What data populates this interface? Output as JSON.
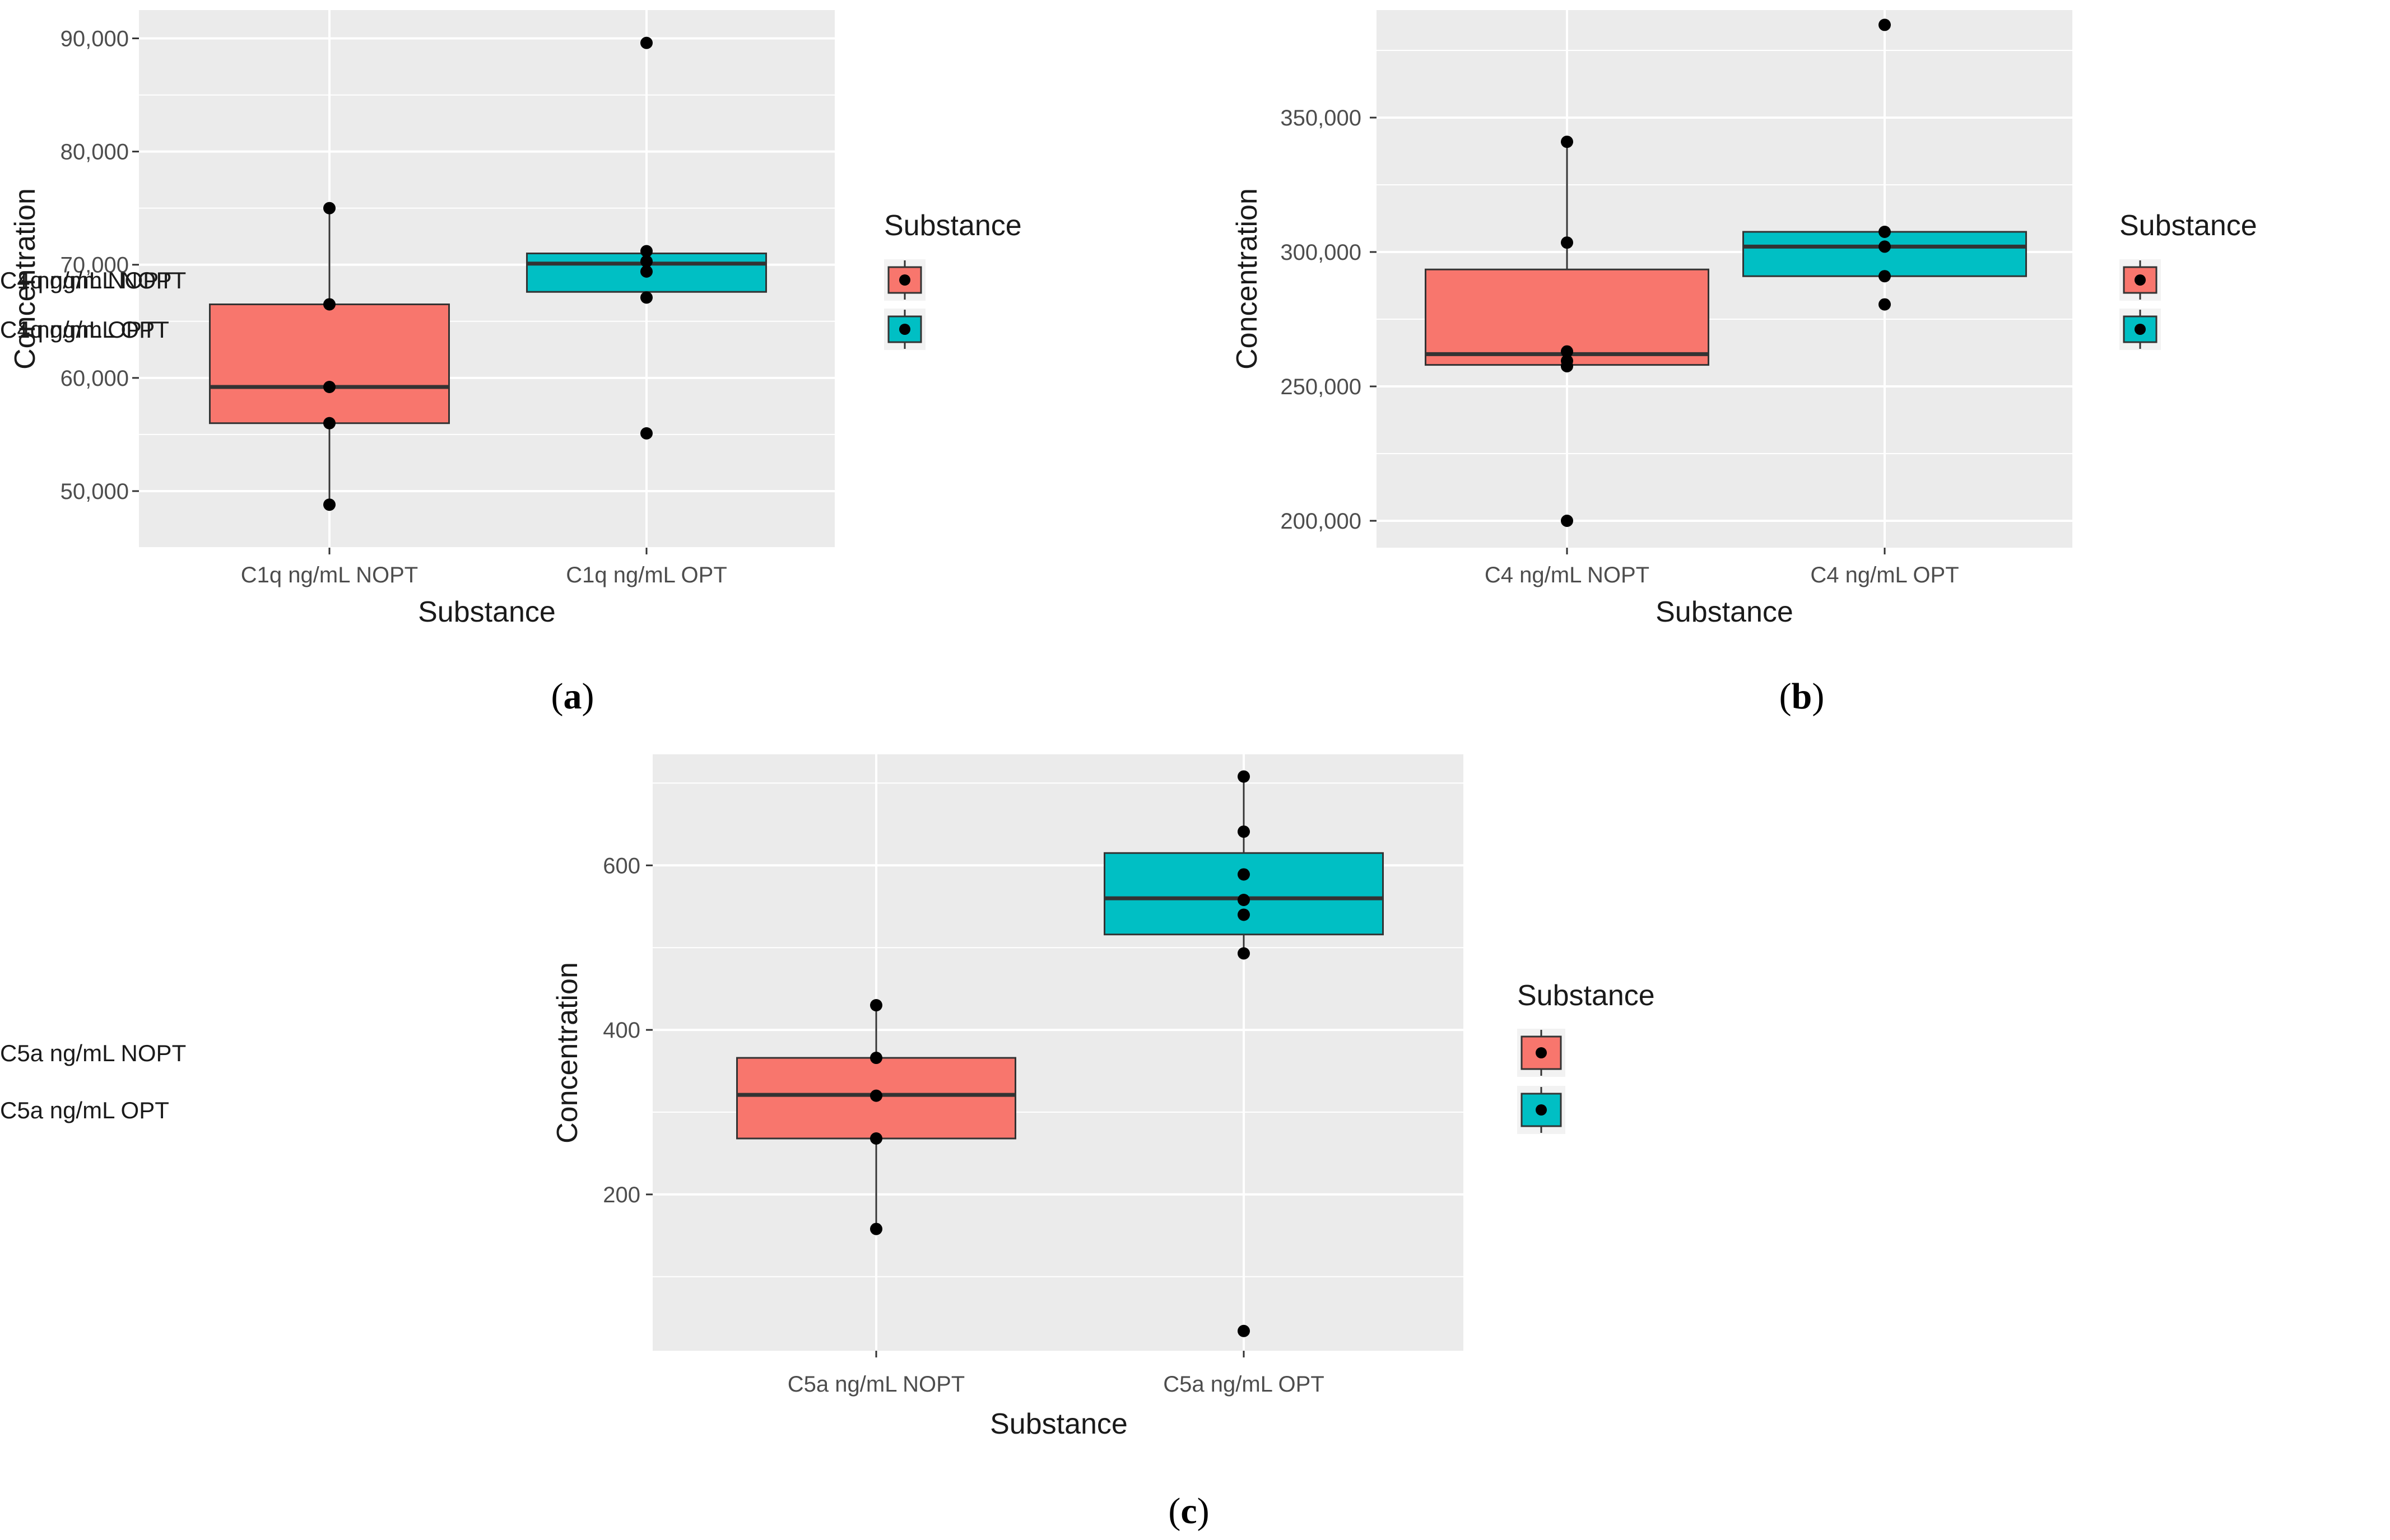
{
  "chart_data": [
    {
      "type": "box",
      "panel_label": "a",
      "xlabel": "Substance",
      "ylabel": "Concentration",
      "legend_title": "Substance",
      "ylim": [
        45000,
        92500
      ],
      "yticks": [
        50000,
        60000,
        70000,
        80000,
        90000
      ],
      "ytick_labels": [
        "50,000",
        "60,000",
        "70,000",
        "80,000",
        "90,000"
      ],
      "categories": [
        "C1q ng/mL NOPT",
        "C1q ng/mL OPT"
      ],
      "series": [
        {
          "name": "C1q ng/mL NOPT",
          "color": "#F8766D",
          "q1": 56000,
          "median": 59200,
          "q3": 66500,
          "whisker_low": 48800,
          "whisker_high": 75000,
          "points": [
            48800,
            56000,
            59200,
            66500,
            75000
          ]
        },
        {
          "name": "C1q ng/mL OPT",
          "color": "#00BFC4",
          "q1": 67600,
          "median": 70100,
          "q3": 71000,
          "whisker_low": 67100,
          "whisker_high": 71200,
          "points": [
            55100,
            67100,
            69400,
            70300,
            71200,
            89600
          ]
        }
      ]
    },
    {
      "type": "box",
      "panel_label": "b",
      "xlabel": "Substance",
      "ylabel": "Concentration",
      "legend_title": "Substance",
      "ylim": [
        190000,
        390000
      ],
      "yticks": [
        200000,
        250000,
        300000,
        350000
      ],
      "ytick_labels": [
        "200,000",
        "250,000",
        "300,000",
        "350,000"
      ],
      "categories": [
        "C4 ng/mL NOPT",
        "C4 ng/mL OPT"
      ],
      "series": [
        {
          "name": "C4 ng/mL NOPT",
          "color": "#F8766D",
          "q1": 258000,
          "median": 262000,
          "q3": 293500,
          "whisker_low": 258000,
          "whisker_high": 341000,
          "points": [
            200000,
            257500,
            259500,
            263000,
            303500,
            341000
          ]
        },
        {
          "name": "C4 ng/mL OPT",
          "color": "#00BFC4",
          "q1": 291000,
          "median": 302000,
          "q3": 307500,
          "whisker_low": 291000,
          "whisker_high": 307500,
          "points": [
            280500,
            291000,
            302000,
            307500,
            384500
          ]
        }
      ]
    },
    {
      "type": "box",
      "panel_label": "c",
      "xlabel": "Substance",
      "ylabel": "Concentration",
      "legend_title": "Substance",
      "ylim": [
        10,
        735
      ],
      "yticks": [
        200,
        400,
        600
      ],
      "ytick_labels": [
        "200",
        "400",
        "600"
      ],
      "categories": [
        "C5a ng/mL NOPT",
        "C5a ng/mL OPT"
      ],
      "series": [
        {
          "name": "C5a ng/mL NOPT",
          "color": "#F8766D",
          "q1": 268,
          "median": 321,
          "q3": 366,
          "whisker_low": 158,
          "whisker_high": 430,
          "points": [
            158,
            268,
            320,
            366,
            430
          ]
        },
        {
          "name": "C5a ng/mL OPT",
          "color": "#00BFC4",
          "q1": 516,
          "median": 560,
          "q3": 615,
          "whisker_low": 493,
          "whisker_high": 708,
          "points": [
            34,
            493,
            540,
            558,
            589,
            641,
            708
          ]
        }
      ]
    }
  ]
}
